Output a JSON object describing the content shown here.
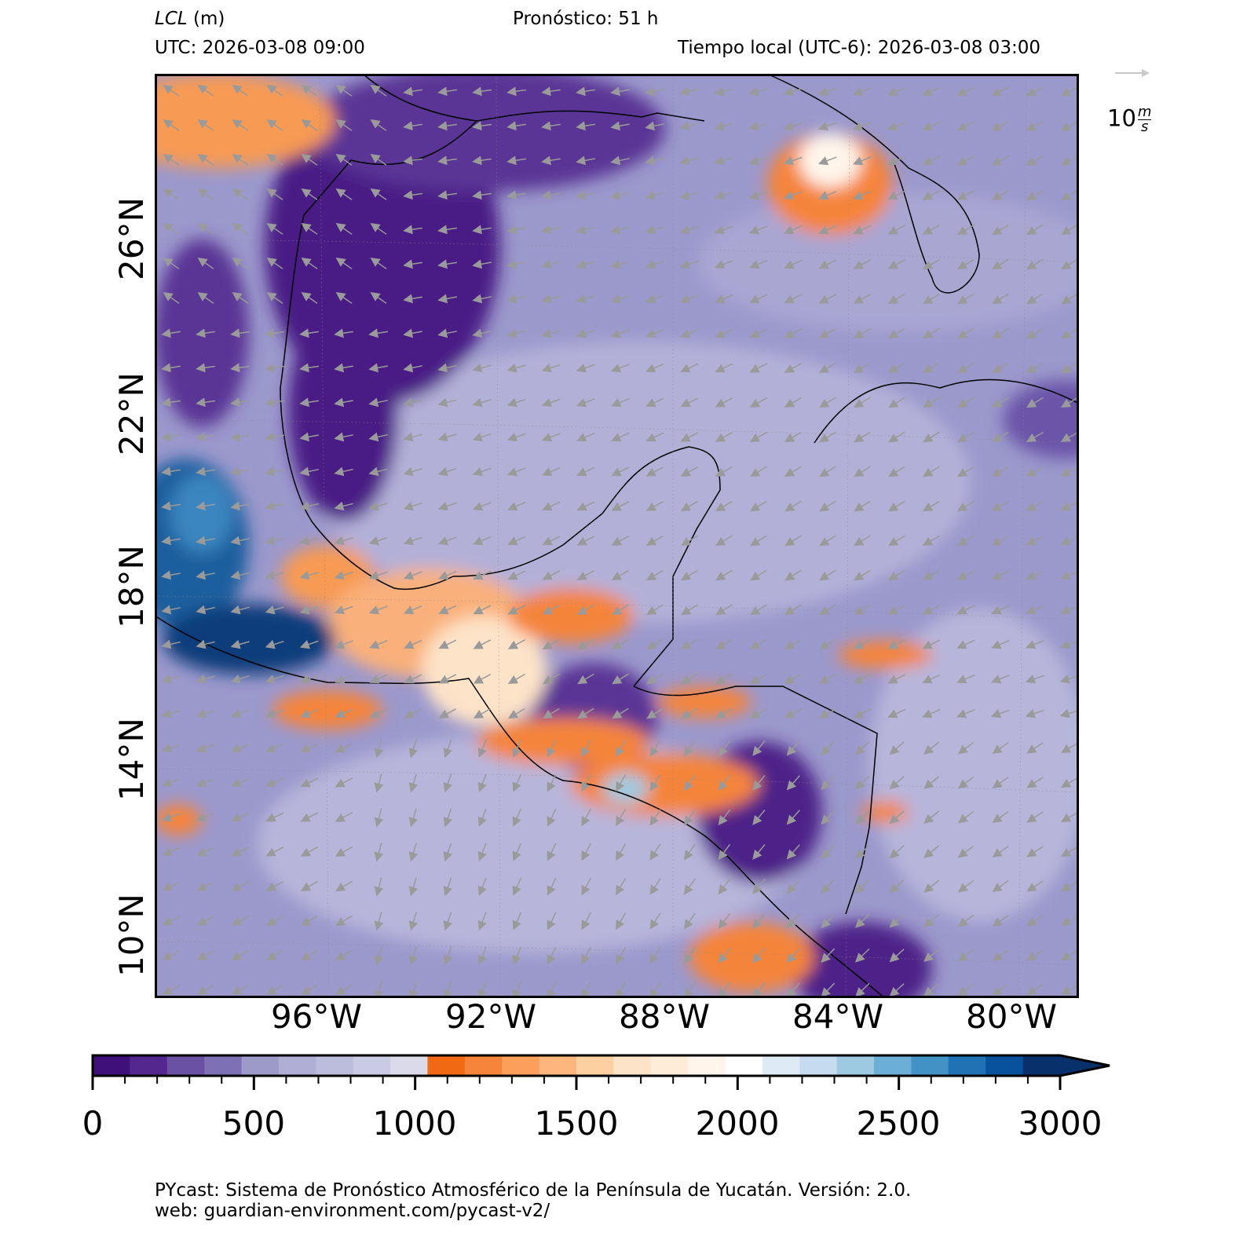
{
  "header": {
    "variable_label": "LCL",
    "variable_unit": "(m)",
    "forecast_label": "Pronóstico: 51 h",
    "utc_label": "UTC:  2026-03-08 09:00",
    "local_label": "Tiempo local (UTC-6): 2026-03-08 03:00"
  },
  "vector_key": {
    "label": "10",
    "unit_num": "m",
    "unit_den": "s",
    "color": "#c8c8c8"
  },
  "map": {
    "lat_ticks": [
      "26°N",
      "22°N",
      "18°N",
      "14°N",
      "10°N"
    ],
    "lon_ticks": [
      "96°W",
      "92°W",
      "88°W",
      "84°W",
      "80°W"
    ],
    "background_color": "#9b98cc",
    "coastline_color": "#000000",
    "wind_arrow_color": "#9a9a9a"
  },
  "colorbar": {
    "ticks": [
      "0",
      "500",
      "1000",
      "1500",
      "2000",
      "2500",
      "3000"
    ],
    "min": 0,
    "max": 3000,
    "extend": "max",
    "colors": [
      "#3f0f7a",
      "#54278f",
      "#6a51a3",
      "#7e70b5",
      "#9e9ac8",
      "#b0aed5",
      "#bcbddc",
      "#cbcae4",
      "#dadaeb",
      "#f16913",
      "#f6843b",
      "#fb9f5a",
      "#fdb77c",
      "#fdd0a2",
      "#fde3c7",
      "#feecd9",
      "#fff5eb",
      "#ffffff",
      "#deebf7",
      "#c6dbef",
      "#9ecae1",
      "#6baed6",
      "#4292c6",
      "#2171b5",
      "#08519c",
      "#08306b"
    ]
  },
  "footer": {
    "line1": "PYcast: Sistema de Pronóstico Atmosférico de la Península de Yucatán. Versión: 2.0.",
    "line2": "web: guardian-environment.com/pycast-v2/"
  }
}
